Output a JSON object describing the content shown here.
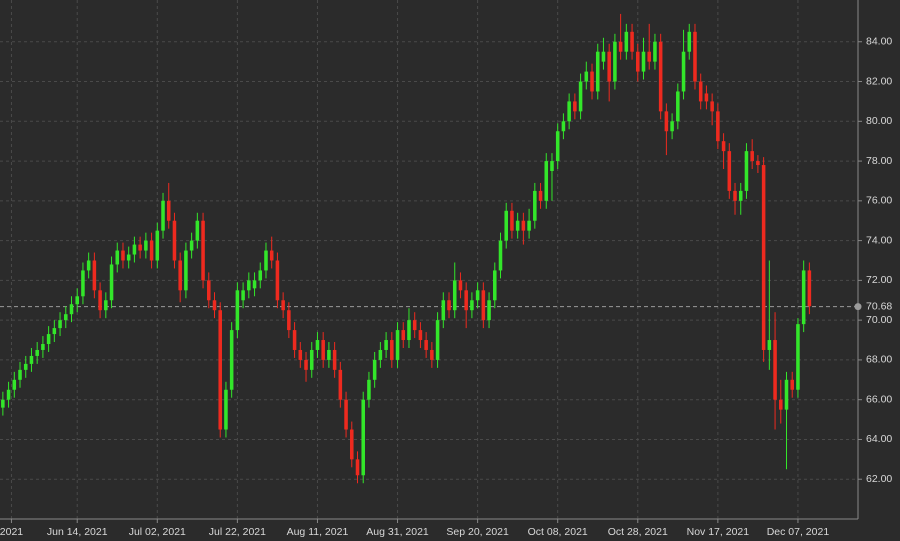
{
  "chart_data": {
    "type": "candlestick",
    "up_color": "#33e62a",
    "down_color": "#ee2a1f",
    "grid": true,
    "last": 70.68,
    "xlim": [
      -0.5,
      149.5
    ],
    "ylim": [
      60,
      86.1
    ],
    "yticks": [
      {
        "value": 62,
        "label": "62.00"
      },
      {
        "value": 64,
        "label": "64.00"
      },
      {
        "value": 66,
        "label": "66.00"
      },
      {
        "value": 68,
        "label": "68.00"
      },
      {
        "value": 70,
        "label": "70.00"
      },
      {
        "value": 72,
        "label": "72.00"
      },
      {
        "value": 74,
        "label": "74.00"
      },
      {
        "value": 76,
        "label": "76.00"
      },
      {
        "value": 78,
        "label": "78.00"
      },
      {
        "value": 80,
        "label": "80.00"
      },
      {
        "value": 82,
        "label": "82.00"
      },
      {
        "value": 84,
        "label": "84.00"
      }
    ],
    "xticks": [
      {
        "value": 1.5,
        "label": "2021"
      },
      {
        "value": 13,
        "label": "Jun 14, 2021"
      },
      {
        "value": 27,
        "label": "Jul 02, 2021"
      },
      {
        "value": 41,
        "label": "Jul 22, 2021"
      },
      {
        "value": 55,
        "label": "Aug 11, 2021"
      },
      {
        "value": 69,
        "label": "Aug 31, 2021"
      },
      {
        "value": 83,
        "label": "Sep 20, 2021"
      },
      {
        "value": 97,
        "label": "Oct 08, 2021"
      },
      {
        "value": 111,
        "label": "Oct 28, 2021"
      },
      {
        "value": 125,
        "label": "Nov 17, 2021"
      },
      {
        "value": 139,
        "label": "Dec 07, 2021"
      }
    ],
    "candles": [
      [
        65.6,
        66.4,
        65.2,
        66.0
      ],
      [
        66.0,
        66.9,
        65.6,
        66.5
      ],
      [
        66.5,
        67.4,
        66.1,
        67.0
      ],
      [
        67.0,
        67.9,
        66.6,
        67.5
      ],
      [
        67.5,
        68.2,
        67.1,
        67.8
      ],
      [
        67.8,
        68.6,
        67.4,
        68.2
      ],
      [
        68.2,
        68.9,
        67.8,
        68.5
      ],
      [
        68.5,
        69.2,
        68.1,
        68.8
      ],
      [
        68.8,
        69.7,
        68.4,
        69.3
      ],
      [
        69.3,
        70.0,
        68.9,
        69.6
      ],
      [
        69.6,
        70.4,
        69.2,
        70.0
      ],
      [
        70.0,
        70.7,
        69.6,
        70.3
      ],
      [
        70.3,
        71.2,
        69.9,
        70.8
      ],
      [
        70.8,
        71.6,
        70.4,
        71.2
      ],
      [
        71.2,
        72.9,
        70.8,
        72.5
      ],
      [
        72.5,
        73.4,
        72.1,
        73.0
      ],
      [
        73.0,
        73.4,
        71.1,
        71.5
      ],
      [
        71.5,
        71.9,
        70.1,
        70.5
      ],
      [
        70.5,
        71.4,
        70.1,
        71.0
      ],
      [
        71.0,
        73.2,
        70.6,
        72.8
      ],
      [
        72.8,
        73.9,
        72.4,
        73.5
      ],
      [
        73.5,
        73.9,
        72.6,
        73.0
      ],
      [
        73.0,
        73.7,
        72.6,
        73.3
      ],
      [
        73.3,
        74.2,
        72.9,
        73.8
      ],
      [
        73.8,
        74.2,
        73.1,
        73.5
      ],
      [
        73.5,
        74.4,
        73.1,
        74.0
      ],
      [
        74.0,
        74.4,
        72.6,
        73.0
      ],
      [
        73.0,
        74.9,
        72.6,
        74.5
      ],
      [
        74.5,
        76.4,
        74.1,
        76.0
      ],
      [
        76.0,
        76.9,
        74.6,
        75.0
      ],
      [
        75.0,
        75.4,
        72.6,
        73.0
      ],
      [
        73.0,
        73.4,
        70.9,
        71.5
      ],
      [
        71.5,
        73.9,
        71.1,
        73.5
      ],
      [
        73.5,
        74.4,
        73.1,
        74.0
      ],
      [
        74.0,
        75.4,
        73.6,
        75.0
      ],
      [
        75.0,
        75.4,
        71.6,
        72.0
      ],
      [
        72.0,
        72.4,
        70.6,
        71.0
      ],
      [
        71.0,
        71.4,
        70.1,
        70.5
      ],
      [
        70.5,
        70.9,
        64.1,
        64.5
      ],
      [
        64.5,
        66.9,
        64.1,
        66.5
      ],
      [
        66.5,
        69.9,
        66.1,
        69.5
      ],
      [
        69.5,
        71.9,
        69.1,
        71.5
      ],
      [
        71.0,
        71.9,
        70.6,
        71.5
      ],
      [
        71.5,
        72.4,
        71.1,
        72.0
      ],
      [
        71.6,
        72.4,
        71.2,
        72.0
      ],
      [
        72.0,
        72.9,
        71.6,
        72.5
      ],
      [
        72.5,
        73.9,
        72.1,
        73.5
      ],
      [
        73.5,
        74.2,
        72.6,
        73.0
      ],
      [
        73.0,
        73.4,
        70.6,
        71.0
      ],
      [
        71.0,
        71.4,
        70.1,
        70.5
      ],
      [
        70.5,
        70.9,
        69.1,
        69.5
      ],
      [
        69.5,
        69.9,
        68.1,
        68.5
      ],
      [
        68.5,
        68.9,
        67.6,
        68.0
      ],
      [
        68.0,
        68.4,
        66.9,
        67.5
      ],
      [
        67.5,
        68.9,
        67.1,
        68.5
      ],
      [
        68.5,
        69.4,
        68.1,
        69.0
      ],
      [
        69.0,
        69.4,
        67.6,
        68.0
      ],
      [
        68.0,
        68.9,
        67.6,
        68.5
      ],
      [
        68.5,
        68.9,
        67.1,
        67.5
      ],
      [
        67.5,
        67.9,
        65.6,
        66.0
      ],
      [
        66.0,
        66.4,
        64.1,
        64.5
      ],
      [
        64.5,
        64.9,
        62.6,
        63.0
      ],
      [
        63.0,
        63.4,
        61.8,
        62.2
      ],
      [
        62.2,
        66.4,
        61.8,
        66.0
      ],
      [
        66.0,
        67.4,
        65.6,
        67.0
      ],
      [
        67.0,
        68.4,
        66.6,
        68.0
      ],
      [
        68.0,
        68.9,
        67.6,
        68.5
      ],
      [
        68.5,
        69.4,
        68.1,
        69.0
      ],
      [
        69.0,
        69.4,
        67.6,
        68.0
      ],
      [
        68.0,
        69.9,
        67.6,
        69.5
      ],
      [
        69.5,
        69.9,
        68.6,
        69.0
      ],
      [
        69.0,
        70.6,
        68.6,
        70.0
      ],
      [
        70.0,
        70.4,
        69.1,
        69.5
      ],
      [
        69.5,
        69.9,
        68.6,
        69.0
      ],
      [
        69.0,
        69.4,
        68.1,
        68.5
      ],
      [
        68.5,
        68.9,
        67.6,
        68.0
      ],
      [
        68.0,
        70.4,
        67.6,
        70.0
      ],
      [
        70.0,
        71.4,
        69.6,
        71.0
      ],
      [
        71.0,
        71.4,
        70.1,
        70.5
      ],
      [
        70.5,
        72.9,
        70.1,
        72.0
      ],
      [
        72.0,
        72.4,
        71.1,
        71.5
      ],
      [
        71.5,
        71.9,
        69.6,
        70.5
      ],
      [
        70.5,
        71.4,
        70.1,
        71.0
      ],
      [
        71.0,
        71.9,
        70.6,
        71.5
      ],
      [
        71.5,
        71.9,
        69.6,
        70.0
      ],
      [
        70.0,
        71.4,
        69.6,
        71.0
      ],
      [
        71.0,
        72.9,
        70.6,
        72.5
      ],
      [
        72.5,
        74.4,
        72.1,
        74.0
      ],
      [
        74.0,
        75.9,
        73.6,
        75.5
      ],
      [
        75.5,
        75.9,
        74.1,
        74.5
      ],
      [
        74.5,
        75.4,
        74.1,
        75.0
      ],
      [
        75.0,
        75.4,
        73.8,
        74.5
      ],
      [
        74.5,
        75.6,
        74.1,
        75.0
      ],
      [
        75.0,
        76.9,
        74.6,
        76.5
      ],
      [
        76.5,
        76.9,
        75.6,
        76.0
      ],
      [
        76.0,
        78.4,
        75.6,
        78.0
      ],
      [
        77.5,
        78.4,
        76.0,
        78.0
      ],
      [
        78.0,
        79.9,
        77.6,
        79.5
      ],
      [
        79.5,
        80.4,
        79.1,
        80.0
      ],
      [
        80.0,
        81.4,
        79.6,
        81.0
      ],
      [
        81.0,
        81.4,
        80.1,
        80.5
      ],
      [
        80.5,
        82.4,
        80.1,
        82.0
      ],
      [
        82.0,
        83.0,
        81.6,
        82.5
      ],
      [
        82.5,
        82.9,
        81.1,
        81.5
      ],
      [
        81.5,
        83.9,
        81.1,
        83.5
      ],
      [
        83.0,
        84.2,
        82.6,
        83.5
      ],
      [
        83.5,
        83.9,
        81.0,
        82.0
      ],
      [
        82.0,
        84.4,
        81.6,
        84.0
      ],
      [
        84.0,
        85.4,
        83.1,
        83.5
      ],
      [
        83.5,
        84.9,
        83.1,
        84.5
      ],
      [
        84.5,
        84.9,
        83.1,
        83.5
      ],
      [
        83.5,
        83.9,
        82.0,
        82.5
      ],
      [
        82.5,
        84.2,
        82.1,
        83.5
      ],
      [
        83.5,
        84.9,
        82.6,
        83.0
      ],
      [
        83.0,
        84.4,
        82.6,
        84.0
      ],
      [
        84.0,
        84.4,
        80.1,
        80.5
      ],
      [
        80.5,
        80.9,
        78.3,
        79.5
      ],
      [
        79.5,
        80.4,
        79.1,
        80.0
      ],
      [
        80.0,
        81.9,
        79.6,
        81.5
      ],
      [
        81.5,
        84.6,
        81.1,
        83.5
      ],
      [
        83.5,
        84.9,
        83.1,
        84.5
      ],
      [
        84.5,
        84.9,
        81.6,
        82.0
      ],
      [
        82.0,
        82.4,
        80.6,
        81.0
      ],
      [
        81.4,
        81.8,
        80.6,
        81.0
      ],
      [
        81.0,
        81.4,
        79.8,
        80.5
      ],
      [
        80.5,
        80.9,
        78.6,
        79.0
      ],
      [
        79.0,
        79.4,
        77.6,
        78.5
      ],
      [
        78.5,
        78.9,
        76.1,
        76.5
      ],
      [
        76.5,
        76.9,
        75.3,
        76.0
      ],
      [
        76.0,
        76.9,
        75.3,
        76.5
      ],
      [
        76.5,
        78.9,
        76.1,
        78.5
      ],
      [
        78.5,
        79.1,
        77.6,
        78.0
      ],
      [
        78.0,
        78.3,
        77.4,
        77.8
      ],
      [
        77.8,
        78.2,
        67.9,
        68.5
      ],
      [
        68.5,
        73.0,
        67.5,
        69.0
      ],
      [
        69.0,
        70.4,
        64.5,
        66.0
      ],
      [
        66.0,
        67.0,
        64.8,
        65.5
      ],
      [
        65.5,
        67.4,
        62.5,
        67.0
      ],
      [
        67.0,
        67.4,
        66.1,
        66.5
      ],
      [
        66.5,
        70.1,
        66.1,
        69.8
      ],
      [
        69.8,
        73.0,
        69.4,
        72.5
      ],
      [
        72.5,
        72.9,
        70.3,
        70.7
      ]
    ]
  }
}
